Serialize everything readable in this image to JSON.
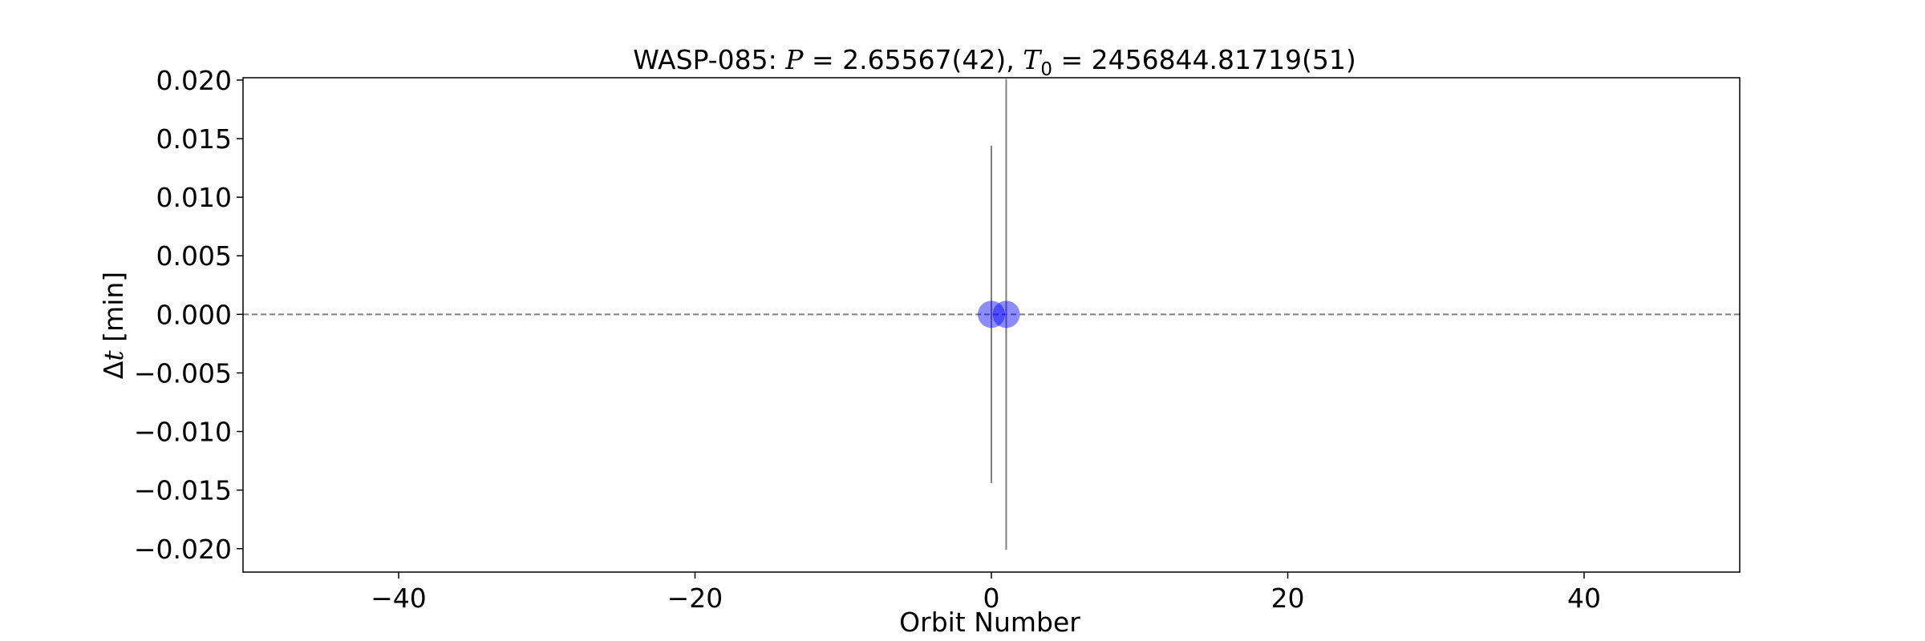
{
  "chart_data": {
    "type": "scatter",
    "title": {
      "prefix": "WASP-085: ",
      "p_symbol": "P",
      "p_value": " = 2.65567(42), ",
      "t_symbol": "T",
      "t_subscript": "0",
      "t_value": " = 2456844.81719(51)"
    },
    "xlabel": "Orbit Number",
    "ylabel": {
      "delta": "Δ",
      "symbol": "t",
      "unit": " [min]"
    },
    "xlim": [
      -50.5,
      50.5
    ],
    "ylim": [
      -0.022,
      0.0202
    ],
    "xticks": [
      -40,
      -20,
      0,
      20,
      40
    ],
    "xtick_labels": [
      "−40",
      "−20",
      "0",
      "20",
      "40"
    ],
    "yticks": [
      0.02,
      0.015,
      0.01,
      0.005,
      0.0,
      -0.005,
      -0.01,
      -0.015,
      -0.02
    ],
    "ytick_labels": [
      "0.020",
      "0.015",
      "0.010",
      "0.005",
      "0.000",
      "−0.005",
      "−0.010",
      "−0.015",
      "−0.020"
    ],
    "reference_line": {
      "y": 0,
      "style": "dashed",
      "color": "#808080"
    },
    "points": [
      {
        "x": 0,
        "y": 0.0,
        "yerr": 0.0144
      },
      {
        "x": 1,
        "y": 0.0,
        "yerr": 0.0201
      }
    ],
    "point_color": "#0000ff",
    "errorbar_color": "#808080",
    "grid": false
  }
}
